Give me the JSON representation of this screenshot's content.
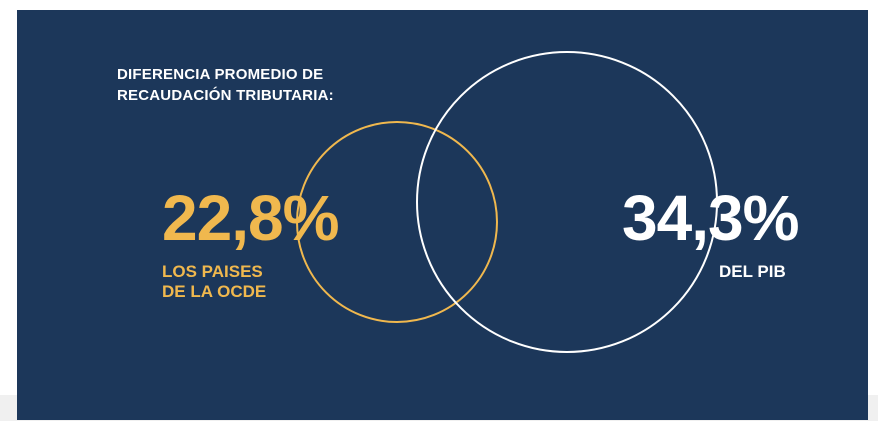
{
  "heading": {
    "line1": "DIFERENCIA PROMEDIO DE",
    "line2": "RECAUDACIÓN TRIBUTARIA:"
  },
  "oecd": {
    "value": "22,8%",
    "label_line1": "LOS PAISES",
    "label_line2": "DE LA OCDE",
    "color": "#f0b84e"
  },
  "pib": {
    "value": "34,3%",
    "label": "DEL PIB",
    "color": "#ffffff"
  },
  "colors": {
    "panel_background": "#1c375a",
    "page_background": "#ffffff"
  }
}
